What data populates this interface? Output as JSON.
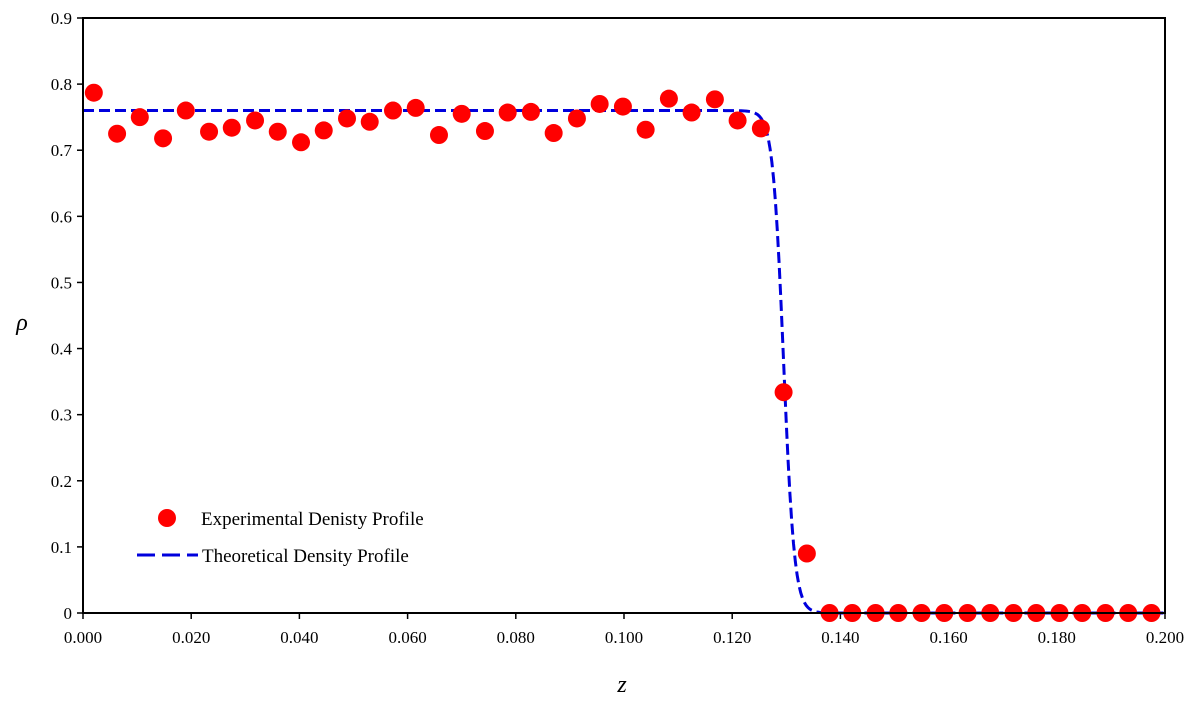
{
  "chart_data": {
    "type": "scatter",
    "xlabel": "z",
    "ylabel": "ρ",
    "xlim": [
      0,
      0.2
    ],
    "ylim": [
      0,
      0.9
    ],
    "x_ticks": [
      "0.000",
      "0.020",
      "0.040",
      "0.060",
      "0.080",
      "0.100",
      "0.120",
      "0.140",
      "0.160",
      "0.180",
      "0.200"
    ],
    "y_ticks": [
      "0",
      "0.1",
      "0.2",
      "0.3",
      "0.4",
      "0.5",
      "0.6",
      "0.7",
      "0.8",
      "0.9"
    ],
    "grid": false,
    "legend_position": "bottom-left",
    "series": [
      {
        "name": "Experimental Denisty Profile",
        "style": "markers",
        "color": "#ff0000",
        "x": [
          0.002,
          0.0063,
          0.0105,
          0.0148,
          0.019,
          0.0233,
          0.0275,
          0.0318,
          0.036,
          0.0403,
          0.0445,
          0.0488,
          0.053,
          0.0573,
          0.0615,
          0.0658,
          0.07,
          0.0743,
          0.0785,
          0.0828,
          0.087,
          0.0913,
          0.0955,
          0.0998,
          0.104,
          0.1083,
          0.1125,
          0.1168,
          0.121,
          0.1253,
          0.1295,
          0.1338,
          0.138,
          0.1422,
          0.1465,
          0.1507,
          0.155,
          0.1592,
          0.1635,
          0.1677,
          0.172,
          0.1762,
          0.1805,
          0.1847,
          0.189,
          0.1932,
          0.1975
        ],
        "y": [
          0.787,
          0.725,
          0.75,
          0.718,
          0.76,
          0.728,
          0.734,
          0.745,
          0.728,
          0.712,
          0.73,
          0.748,
          0.743,
          0.76,
          0.764,
          0.723,
          0.755,
          0.729,
          0.757,
          0.758,
          0.726,
          0.748,
          0.77,
          0.766,
          0.731,
          0.778,
          0.757,
          0.777,
          0.745,
          0.733,
          0.334,
          0.09,
          0.0,
          0.0,
          0.0,
          0.0,
          0.0,
          0.0,
          0.0,
          0.0,
          0.0,
          0.0,
          0.0,
          0.0,
          0.0,
          0.0,
          0.0
        ]
      },
      {
        "name": "Theoretical Density Profile",
        "style": "dashed-line",
        "color": "#0000dd",
        "function": "tanh",
        "plateau": 0.76,
        "center": 0.1295,
        "width": 0.002,
        "x_start": 0.0,
        "x_end": 0.2
      }
    ]
  }
}
